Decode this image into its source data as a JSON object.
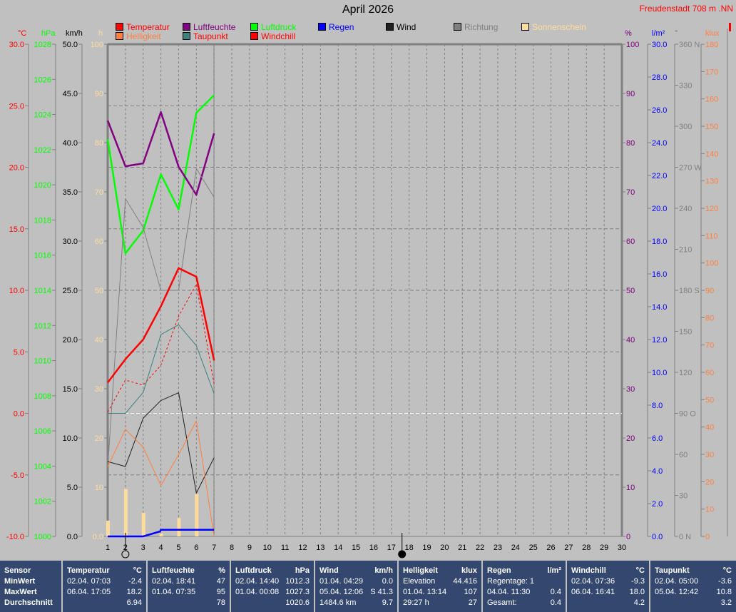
{
  "header": {
    "title": "April 2026",
    "location": "Freudenstadt 708 m  .NN"
  },
  "legend": [
    {
      "label": "Temperatur",
      "color": "#ff0000",
      "text_color": "#ff0000"
    },
    {
      "label": "Luftfeuchte",
      "color": "#800080",
      "text_color": "#800080"
    },
    {
      "label": "Luftdruck",
      "color": "#00ff00",
      "text_color": "#00ff00"
    },
    {
      "label": "Regen",
      "color": "#0000ff",
      "text_color": "#0000ff"
    },
    {
      "label": "Wind",
      "color": "#202020",
      "text_color": "#000000"
    },
    {
      "label": "Richtung",
      "color": "#808080",
      "text_color": "#808080"
    },
    {
      "label": "Sonnenschein",
      "color": "#ffdc9c",
      "text_color": "#ffdc9c"
    },
    {
      "label": "Helligkeit",
      "color": "#ff8040",
      "text_color": "#ff8040"
    },
    {
      "label": "Taupunkt",
      "color": "#408080",
      "text_color": "#ff0000"
    },
    {
      "label": "Windchill",
      "color": "#ff0000",
      "text_color": "#ff0000"
    }
  ],
  "chart_data": {
    "type": "line",
    "title": "April 2026",
    "x": [
      1,
      2,
      3,
      4,
      5,
      6,
      7
    ],
    "x_ticks": [
      "1",
      "2",
      "3",
      "4",
      "5",
      "6",
      "7",
      "8",
      "9",
      "10",
      "11",
      "12",
      "13",
      "14",
      "15",
      "16",
      "17",
      "18",
      "19",
      "20",
      "21",
      "22",
      "23",
      "24",
      "25",
      "26",
      "27",
      "28",
      "29",
      "30"
    ],
    "xlim": [
      1,
      30
    ],
    "grid": true,
    "zero_line": {
      "axis": "temp",
      "value": 0,
      "color": "#ffffff"
    },
    "axes": [
      {
        "id": "temp",
        "unit": "°C",
        "color": "#ff0000",
        "min": -10,
        "max": 30,
        "ticks": [
          "-10.0",
          "-5.0",
          "0.0",
          "5.0",
          "10.0",
          "15.0",
          "20.0",
          "25.0",
          "30.0"
        ]
      },
      {
        "id": "press",
        "unit": "hPa",
        "color": "#00ff00",
        "min": 1000,
        "max": 1028,
        "ticks": [
          "1000",
          "1002",
          "1004",
          "1006",
          "1008",
          "1010",
          "1012",
          "1014",
          "1016",
          "1018",
          "1020",
          "1022",
          "1024",
          "1026",
          "1028"
        ]
      },
      {
        "id": "wind",
        "unit": "km/h",
        "color": "#000000",
        "min": 0,
        "max": 50,
        "ticks": [
          "0.0",
          "5.0",
          "10.0",
          "15.0",
          "20.0",
          "25.0",
          "30.0",
          "35.0",
          "40.0",
          "45.0",
          "50.0"
        ]
      },
      {
        "id": "sun",
        "unit": "h",
        "color": "#ffdc9c",
        "min": 0,
        "max": 100,
        "ticks": [
          "0.0",
          "10",
          "20",
          "30",
          "40",
          "50",
          "60",
          "70",
          "80",
          "90",
          "100"
        ]
      },
      {
        "id": "hum",
        "unit": "%",
        "color": "#800080",
        "min": 0,
        "max": 100,
        "ticks": [
          "0",
          "10",
          "20",
          "30",
          "40",
          "50",
          "60",
          "70",
          "80",
          "90",
          "100"
        ]
      },
      {
        "id": "rain",
        "unit": "l/m²",
        "color": "#0000ff",
        "min": 0,
        "max": 30,
        "ticks": [
          "0.0",
          "2.0",
          "4.0",
          "6.0",
          "8.0",
          "10.0",
          "12.0",
          "14.0",
          "16.0",
          "18.0",
          "20.0",
          "22.0",
          "24.0",
          "26.0",
          "28.0",
          "30.0"
        ]
      },
      {
        "id": "dir",
        "unit": "°",
        "color": "#808080",
        "min": 0,
        "max": 360,
        "ticks": [
          "0   N",
          "30",
          "60",
          "90   O",
          "120",
          "150",
          "180   S",
          "210",
          "240",
          "270   W",
          "300",
          "330",
          "360   N"
        ]
      },
      {
        "id": "lux",
        "unit": "klux",
        "color": "#ff8040",
        "min": 0,
        "max": 180,
        "ticks": [
          "0",
          "10",
          "20",
          "30",
          "40",
          "50",
          "60",
          "70",
          "80",
          "90",
          "100",
          "110",
          "120",
          "130",
          "140",
          "150",
          "160",
          "170",
          "180"
        ]
      }
    ],
    "series": [
      {
        "name": "Luftdruck",
        "axis": "press",
        "color": "#00ff00",
        "width": 2.5,
        "values": [
          1022.6,
          1016.1,
          1017.4,
          1020.6,
          1018.6,
          1024.1,
          1025.1
        ]
      },
      {
        "name": "Luftfeuchte",
        "axis": "hum",
        "color": "#800080",
        "width": 2.5,
        "values": [
          84.5,
          75.2,
          75.8,
          86.2,
          75.1,
          69.4,
          81.9
        ]
      },
      {
        "name": "Richtung",
        "axis": "dir",
        "color": "#808080",
        "width": 1,
        "values": [
          50,
          247,
          226,
          180,
          180,
          269,
          248
        ]
      },
      {
        "name": "Temperatur",
        "axis": "temp",
        "color": "#ff0000",
        "width": 2.5,
        "values": [
          2.5,
          4.4,
          6.0,
          8.7,
          11.8,
          11.1,
          4.3
        ]
      },
      {
        "name": "Windchill",
        "axis": "temp",
        "color": "#ff0000",
        "width": 1,
        "dashed": true,
        "values": [
          0.1,
          2.7,
          2.3,
          3.9,
          7.9,
          10.5,
          2.4
        ]
      },
      {
        "name": "Taupunkt",
        "axis": "temp",
        "color": "#408080",
        "width": 1,
        "values": [
          0.0,
          0.0,
          1.7,
          6.4,
          7.2,
          5.5,
          1.6
        ]
      },
      {
        "name": "Wind",
        "axis": "wind",
        "color": "#202020",
        "width": 1,
        "values": [
          7.6,
          7.1,
          12.0,
          13.8,
          14.6,
          4.4,
          8.0
        ]
      },
      {
        "name": "Helligkeit",
        "axis": "lux",
        "color": "#ff8040",
        "width": 1,
        "values": [
          25.4,
          39.2,
          32.6,
          18.6,
          29.9,
          42.2,
          0
        ]
      }
    ],
    "bars": {
      "name": "Sonnenschein",
      "axis": "sun",
      "color": "#ffdc9c",
      "values": [
        3.2,
        9.6,
        4.8,
        0.6,
        3.7,
        8.6,
        0
      ]
    },
    "rain": {
      "name": "Regen",
      "axis": "rain",
      "color": "#0000ff",
      "x": [
        1,
        3,
        3.95,
        4,
        7
      ],
      "values": [
        0,
        0,
        0.3,
        0.4,
        0.4
      ]
    },
    "moon_phases": [
      {
        "phase": "full-moon",
        "day": 2
      },
      {
        "phase": "new-moon",
        "day": 17.6
      }
    ]
  },
  "table": {
    "sensor": {
      "title": "Sensor",
      "rows": [
        "MinWert",
        "MaxWert",
        "Durchschnitt"
      ]
    },
    "columns": [
      {
        "title": "Temperatur",
        "unit": "°C",
        "rows": [
          [
            "02.04.  07:03",
            "-2.4"
          ],
          [
            "06.04.  17:05",
            "18.2"
          ],
          [
            "",
            "6.94"
          ]
        ]
      },
      {
        "title": "Luftfeuchte",
        "unit": "%",
        "rows": [
          [
            "02.04.  18:41",
            "47"
          ],
          [
            "01.04.  07:35",
            "95"
          ],
          [
            "",
            "78"
          ]
        ]
      },
      {
        "title": "Luftdruck",
        "unit": "hPa",
        "rows": [
          [
            "02.04.  14:40",
            "1012.3"
          ],
          [
            "01.04.  00:08",
            "1027.3"
          ],
          [
            "",
            "1020.6"
          ]
        ]
      },
      {
        "title": "Wind",
        "unit": "km/h",
        "rows": [
          [
            "01.04.  04:29",
            "0.0"
          ],
          [
            "05.04.  12:06",
            "S 41.3"
          ],
          [
            "1484.6 km",
            "9.7"
          ]
        ]
      },
      {
        "title": "Helligkeit",
        "unit": "klux",
        "rows": [
          [
            "Elevation",
            "44.416"
          ],
          [
            "01.04.  13:14",
            "107"
          ],
          [
            "29:27 h",
            "27"
          ]
        ]
      },
      {
        "title": "Regen",
        "unit": "l/m²",
        "rows": [
          [
            "Regentage: 1",
            ""
          ],
          [
            "04.04.  11:30",
            "0.4"
          ],
          [
            "Gesamt:",
            "0.4"
          ]
        ]
      },
      {
        "title": "Windchill",
        "unit": "°C",
        "rows": [
          [
            "02.04.  07:36",
            "-9.3"
          ],
          [
            "06.04.  16:41",
            "18.0"
          ],
          [
            "",
            "4.2"
          ]
        ]
      },
      {
        "title": "Taupunkt",
        "unit": "°C",
        "rows": [
          [
            "02.04.  05:00",
            "-3.6"
          ],
          [
            "05.04.  12:42",
            "10.8"
          ],
          [
            "",
            "3.2"
          ]
        ]
      }
    ]
  }
}
